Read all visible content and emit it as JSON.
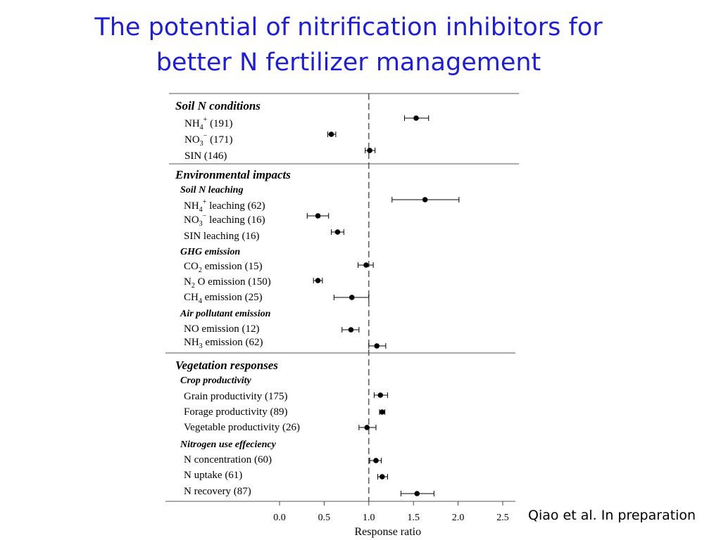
{
  "slide": {
    "title_line1": "The potential of nitrification inhibitors for",
    "title_line2": "better N fertilizer management",
    "citation": "Qiao et al. In preparation"
  },
  "chart_data": {
    "type": "forest",
    "xlabel": "Response ratio",
    "xlim": [
      0,
      2.5
    ],
    "xticks": [
      "0.0",
      "0.5",
      "1.0",
      "1.5",
      "2.0",
      "2.5"
    ],
    "reference_line": 1.0,
    "groups": [
      {
        "name": "Soil N conditions",
        "subgroups": [
          {
            "name": "",
            "items": [
              {
                "label": "NH4+ (191)",
                "value": 1.53,
                "ci": [
                  1.4,
                  1.67
                ]
              },
              {
                "label": "NO3− (171)",
                "value": 0.58,
                "ci": [
                  0.54,
                  0.63
                ]
              },
              {
                "label": "SIN (146)",
                "value": 1.01,
                "ci": [
                  0.96,
                  1.07
                ]
              }
            ]
          }
        ]
      },
      {
        "name": "Environmental impacts",
        "subgroups": [
          {
            "name": "Soil N leaching",
            "items": [
              {
                "label": "NH4+ leaching (62)",
                "value": 1.63,
                "ci": [
                  1.26,
                  2.01
                ]
              },
              {
                "label": "NO3− leaching (16)",
                "value": 0.43,
                "ci": [
                  0.31,
                  0.55
                ]
              },
              {
                "label": "SIN leaching (16)",
                "value": 0.65,
                "ci": [
                  0.58,
                  0.72
                ]
              }
            ]
          },
          {
            "name": "GHG emission",
            "items": [
              {
                "label": "CO2 emission (15)",
                "value": 0.97,
                "ci": [
                  0.88,
                  1.05
                ]
              },
              {
                "label": "N2O emission (150)",
                "value": 0.43,
                "ci": [
                  0.38,
                  0.48
                ]
              },
              {
                "label": "CH4 emission (25)",
                "value": 0.81,
                "ci": [
                  0.61,
                  1.0
                ]
              }
            ]
          },
          {
            "name": "Air pollutant emission",
            "items": [
              {
                "label": "NO emission (12)",
                "value": 0.8,
                "ci": [
                  0.7,
                  0.89
                ]
              },
              {
                "label": "NH3 emission (62)",
                "value": 1.09,
                "ci": [
                  1.0,
                  1.19
                ]
              }
            ]
          }
        ]
      },
      {
        "name": "Vegetation responses",
        "subgroups": [
          {
            "name": "Crop productivity",
            "items": [
              {
                "label": "Grain productivity (175)",
                "value": 1.13,
                "ci": [
                  1.06,
                  1.21
                ]
              },
              {
                "label": "Forage productivity (89)",
                "value": 1.15,
                "ci": [
                  1.12,
                  1.18
                ]
              },
              {
                "label": "Vegetable productivity (26)",
                "value": 0.98,
                "ci": [
                  0.89,
                  1.08
                ]
              }
            ]
          },
          {
            "name": "Nitrogen use effeciency",
            "items": [
              {
                "label": "N concentration (60)",
                "value": 1.08,
                "ci": [
                  1.01,
                  1.14
                ]
              },
              {
                "label": "N uptake (61)",
                "value": 1.15,
                "ci": [
                  1.1,
                  1.21
                ]
              },
              {
                "label": "N recovery (87)",
                "value": 1.54,
                "ci": [
                  1.36,
                  1.73
                ]
              }
            ]
          }
        ]
      }
    ]
  }
}
